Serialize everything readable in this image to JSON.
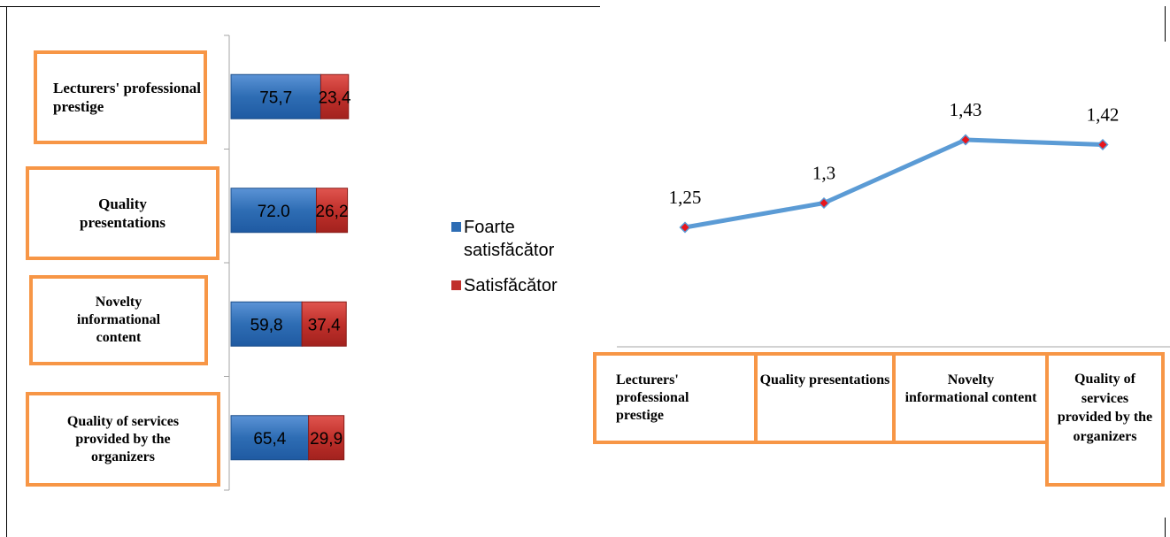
{
  "chart_data": [
    {
      "type": "bar",
      "orientation": "horizontal",
      "stacked": true,
      "categories": [
        "Lecturers' professional prestige",
        "Quality presentations",
        "Novelty informational content",
        "Quality of services provided by the organizers"
      ],
      "series": [
        {
          "name": "Foarte satisfăcător",
          "color": "#2e6db4",
          "values": [
            75.7,
            72.0,
            59.8,
            65.4
          ],
          "labels": [
            "75,7",
            "72.0",
            "59,8",
            "65,4"
          ]
        },
        {
          "name": "Satisfăcător",
          "color": "#c0302b",
          "values": [
            23.4,
            26.2,
            37.4,
            29.9
          ],
          "labels": [
            "23,4",
            "26,2",
            "37,4",
            "29,9"
          ]
        }
      ],
      "legend": "right"
    },
    {
      "type": "line",
      "categories": [
        "Lecturers' professional prestige",
        "Quality presentations",
        "Novelty informational content",
        "Quality of services provided by the organizers"
      ],
      "series": [
        {
          "values": [
            1.25,
            1.3,
            1.43,
            1.42
          ],
          "labels": [
            "1,25",
            "1,3",
            "1,43",
            "1,42"
          ],
          "color": "#5b9bd5",
          "marker_color": "#e8141b"
        }
      ]
    }
  ]
}
